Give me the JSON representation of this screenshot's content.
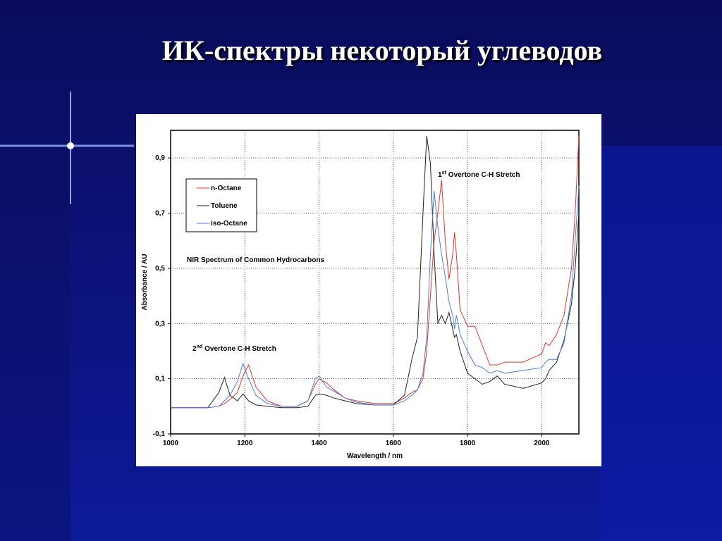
{
  "title": "ИК-спектры некоторый углеводов",
  "chart_data": {
    "type": "line",
    "title": "NIR Spectrum of Common Hydrocarbons",
    "x_label": "Wavelength / nm",
    "y_label": "Absorbance / AU",
    "annotations": [
      {
        "number": "1",
        "suffix": "st",
        "text": "Overtone C-H Stretch"
      },
      {
        "number": "2",
        "suffix": "nd",
        "text": "Overtone C-H Stretch"
      }
    ],
    "xlim": [
      1000,
      2100
    ],
    "ylim": [
      -0.1,
      1.0
    ],
    "xticks": [
      1000,
      1200,
      1400,
      1600,
      1800,
      2000
    ],
    "yticks": [
      {
        "value": -0.1,
        "label": "-0,1"
      },
      {
        "value": 0.1,
        "label": "0,1"
      },
      {
        "value": 0.3,
        "label": "0,3"
      },
      {
        "value": 0.5,
        "label": "0,5"
      },
      {
        "value": 0.7,
        "label": "0,7"
      },
      {
        "value": 0.9,
        "label": "0,9"
      }
    ],
    "grid": true,
    "legend": "upper left",
    "x": [
      1000,
      1050,
      1100,
      1130,
      1145,
      1160,
      1180,
      1195,
      1210,
      1230,
      1260,
      1300,
      1340,
      1370,
      1390,
      1400,
      1420,
      1440,
      1470,
      1500,
      1550,
      1600,
      1630,
      1650,
      1665,
      1680,
      1690,
      1700,
      1710,
      1720,
      1730,
      1740,
      1750,
      1760,
      1765,
      1770,
      1780,
      1800,
      1820,
      1840,
      1860,
      1880,
      1900,
      1950,
      2000,
      2010,
      2020,
      2040,
      2060,
      2080,
      2090,
      2100
    ],
    "series": [
      {
        "name": "n-Octane",
        "color": "#e8332a",
        "values": [
          -0.005,
          -0.005,
          -0.005,
          0.0,
          0.01,
          0.025,
          0.05,
          0.11,
          0.15,
          0.07,
          0.02,
          0.0,
          0.0,
          0.02,
          0.08,
          0.1,
          0.085,
          0.06,
          0.03,
          0.02,
          0.01,
          0.01,
          0.03,
          0.05,
          0.06,
          0.1,
          0.2,
          0.4,
          0.6,
          0.7,
          0.82,
          0.6,
          0.46,
          0.55,
          0.63,
          0.55,
          0.35,
          0.29,
          0.29,
          0.22,
          0.15,
          0.15,
          0.16,
          0.16,
          0.19,
          0.23,
          0.22,
          0.26,
          0.33,
          0.5,
          0.7,
          0.98
        ]
      },
      {
        "name": "Toluene",
        "color": "#222222",
        "values": [
          -0.005,
          -0.005,
          -0.005,
          0.05,
          0.105,
          0.04,
          0.02,
          0.045,
          0.02,
          0.005,
          0.0,
          -0.005,
          -0.005,
          0.0,
          0.04,
          0.045,
          0.04,
          0.03,
          0.02,
          0.01,
          0.005,
          0.005,
          0.04,
          0.17,
          0.25,
          0.7,
          0.98,
          0.88,
          0.55,
          0.3,
          0.33,
          0.3,
          0.34,
          0.28,
          0.25,
          0.26,
          0.2,
          0.12,
          0.1,
          0.08,
          0.09,
          0.11,
          0.08,
          0.065,
          0.085,
          0.1,
          0.13,
          0.16,
          0.24,
          0.37,
          0.5,
          0.7
        ]
      },
      {
        "name": "iso-Octane",
        "color": "#4a7fe0",
        "values": [
          -0.005,
          -0.005,
          -0.005,
          0.0,
          0.02,
          0.04,
          0.09,
          0.155,
          0.1,
          0.04,
          0.01,
          0.0,
          0.0,
          0.02,
          0.1,
          0.11,
          0.07,
          0.055,
          0.03,
          0.015,
          0.005,
          0.005,
          0.02,
          0.04,
          0.06,
          0.12,
          0.25,
          0.55,
          0.78,
          0.65,
          0.55,
          0.47,
          0.38,
          0.33,
          0.28,
          0.33,
          0.26,
          0.2,
          0.15,
          0.14,
          0.12,
          0.13,
          0.12,
          0.13,
          0.14,
          0.16,
          0.17,
          0.17,
          0.23,
          0.4,
          0.6,
          0.8
        ]
      }
    ]
  }
}
